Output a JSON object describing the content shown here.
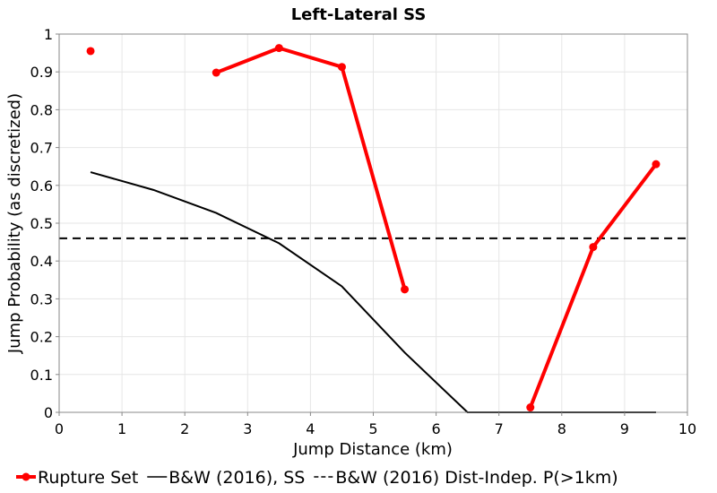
{
  "chart_data": {
    "type": "line",
    "title": "Left-Lateral SS",
    "xlabel": "Jump Distance (km)",
    "ylabel": "Jump Probability (as discretized)",
    "xlim": [
      0,
      10
    ],
    "ylim": [
      0,
      1
    ],
    "xticks": [
      "0",
      "1",
      "2",
      "3",
      "4",
      "5",
      "6",
      "7",
      "8",
      "9",
      "10"
    ],
    "yticks": [
      "0",
      "0.1",
      "0.2",
      "0.3",
      "0.4",
      "0.5",
      "0.6",
      "0.7",
      "0.8",
      "0.9",
      "1"
    ],
    "grid": true,
    "legend_position": "bottom",
    "series": [
      {
        "name": "Rupture Set",
        "color": "#ff0000",
        "style": "line-markers",
        "segments": [
          [
            [
              0.5,
              0.955
            ]
          ],
          [
            [
              2.5,
              0.898
            ],
            [
              3.5,
              0.963
            ],
            [
              4.5,
              0.913
            ],
            [
              5.5,
              0.325
            ]
          ],
          [
            [
              7.5,
              0.013
            ],
            [
              8.5,
              0.437
            ],
            [
              9.5,
              0.656
            ]
          ]
        ]
      },
      {
        "name": "B&W (2016), SS",
        "color": "#000000",
        "style": "solid",
        "segments": [
          [
            [
              0.5,
              0.635
            ],
            [
              1.5,
              0.588
            ],
            [
              2.5,
              0.527
            ],
            [
              3.5,
              0.447
            ],
            [
              4.5,
              0.333
            ],
            [
              5.5,
              0.158
            ],
            [
              6.5,
              0.0
            ],
            [
              7.5,
              0.0
            ],
            [
              8.5,
              0.0
            ],
            [
              9.5,
              0.0
            ]
          ]
        ]
      },
      {
        "name": "B&W (2016) Dist-Indep. P(>1km)",
        "color": "#000000",
        "style": "dashed",
        "segments": [
          [
            [
              0,
              0.46
            ],
            [
              10,
              0.46
            ]
          ]
        ]
      }
    ]
  }
}
